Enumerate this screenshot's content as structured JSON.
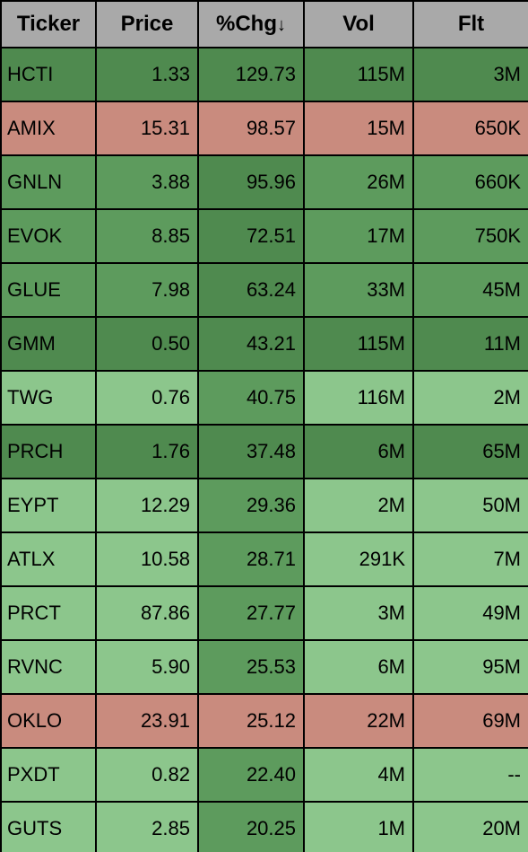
{
  "colors": {
    "header_bg": "#a9a9a9",
    "dark_green": "#4f8a4f",
    "mid_green": "#5d9b5d",
    "light_green": "#8cc68c",
    "salmon": "#c98b7e"
  },
  "columns": [
    {
      "key": "ticker",
      "label": "Ticker",
      "sort": false
    },
    {
      "key": "price",
      "label": "Price",
      "sort": false
    },
    {
      "key": "chg",
      "label": "%Chg",
      "sort": "desc"
    },
    {
      "key": "vol",
      "label": "Vol",
      "sort": false
    },
    {
      "key": "flt",
      "label": "Flt",
      "sort": false
    }
  ],
  "rows": [
    {
      "ticker": "HCTI",
      "price": "1.33",
      "chg": "129.73",
      "vol": "115M",
      "flt": "3M",
      "cell_bg": {
        "ticker": "dark_green",
        "price": "dark_green",
        "chg": "dark_green",
        "vol": "dark_green",
        "flt": "dark_green"
      }
    },
    {
      "ticker": "AMIX",
      "price": "15.31",
      "chg": "98.57",
      "vol": "15M",
      "flt": "650K",
      "cell_bg": {
        "ticker": "salmon",
        "price": "salmon",
        "chg": "salmon",
        "vol": "salmon",
        "flt": "salmon"
      }
    },
    {
      "ticker": "GNLN",
      "price": "3.88",
      "chg": "95.96",
      "vol": "26M",
      "flt": "660K",
      "cell_bg": {
        "ticker": "mid_green",
        "price": "mid_green",
        "chg": "dark_green",
        "vol": "mid_green",
        "flt": "mid_green"
      }
    },
    {
      "ticker": "EVOK",
      "price": "8.85",
      "chg": "72.51",
      "vol": "17M",
      "flt": "750K",
      "cell_bg": {
        "ticker": "mid_green",
        "price": "mid_green",
        "chg": "dark_green",
        "vol": "mid_green",
        "flt": "mid_green"
      }
    },
    {
      "ticker": "GLUE",
      "price": "7.98",
      "chg": "63.24",
      "vol": "33M",
      "flt": "45M",
      "cell_bg": {
        "ticker": "mid_green",
        "price": "mid_green",
        "chg": "dark_green",
        "vol": "mid_green",
        "flt": "mid_green"
      }
    },
    {
      "ticker": "GMM",
      "price": "0.50",
      "chg": "43.21",
      "vol": "115M",
      "flt": "11M",
      "cell_bg": {
        "ticker": "dark_green",
        "price": "dark_green",
        "chg": "dark_green",
        "vol": "dark_green",
        "flt": "dark_green"
      }
    },
    {
      "ticker": "TWG",
      "price": "0.76",
      "chg": "40.75",
      "vol": "116M",
      "flt": "2M",
      "cell_bg": {
        "ticker": "light_green",
        "price": "light_green",
        "chg": "mid_green",
        "vol": "light_green",
        "flt": "light_green"
      }
    },
    {
      "ticker": "PRCH",
      "price": "1.76",
      "chg": "37.48",
      "vol": "6M",
      "flt": "65M",
      "cell_bg": {
        "ticker": "dark_green",
        "price": "dark_green",
        "chg": "dark_green",
        "vol": "dark_green",
        "flt": "dark_green"
      }
    },
    {
      "ticker": "EYPT",
      "price": "12.29",
      "chg": "29.36",
      "vol": "2M",
      "flt": "50M",
      "cell_bg": {
        "ticker": "light_green",
        "price": "light_green",
        "chg": "mid_green",
        "vol": "light_green",
        "flt": "light_green"
      }
    },
    {
      "ticker": "ATLX",
      "price": "10.58",
      "chg": "28.71",
      "vol": "291K",
      "flt": "7M",
      "cell_bg": {
        "ticker": "light_green",
        "price": "light_green",
        "chg": "mid_green",
        "vol": "light_green",
        "flt": "light_green"
      }
    },
    {
      "ticker": "PRCT",
      "price": "87.86",
      "chg": "27.77",
      "vol": "3M",
      "flt": "49M",
      "cell_bg": {
        "ticker": "light_green",
        "price": "light_green",
        "chg": "mid_green",
        "vol": "light_green",
        "flt": "light_green"
      }
    },
    {
      "ticker": "RVNC",
      "price": "5.90",
      "chg": "25.53",
      "vol": "6M",
      "flt": "95M",
      "cell_bg": {
        "ticker": "light_green",
        "price": "light_green",
        "chg": "mid_green",
        "vol": "light_green",
        "flt": "light_green"
      }
    },
    {
      "ticker": "OKLO",
      "price": "23.91",
      "chg": "25.12",
      "vol": "22M",
      "flt": "69M",
      "cell_bg": {
        "ticker": "salmon",
        "price": "salmon",
        "chg": "salmon",
        "vol": "salmon",
        "flt": "salmon"
      }
    },
    {
      "ticker": "PXDT",
      "price": "0.82",
      "chg": "22.40",
      "vol": "4M",
      "flt": "--",
      "cell_bg": {
        "ticker": "light_green",
        "price": "light_green",
        "chg": "mid_green",
        "vol": "light_green",
        "flt": "light_green"
      }
    },
    {
      "ticker": "GUTS",
      "price": "2.85",
      "chg": "20.25",
      "vol": "1M",
      "flt": "20M",
      "cell_bg": {
        "ticker": "light_green",
        "price": "light_green",
        "chg": "mid_green",
        "vol": "light_green",
        "flt": "light_green"
      }
    }
  ]
}
